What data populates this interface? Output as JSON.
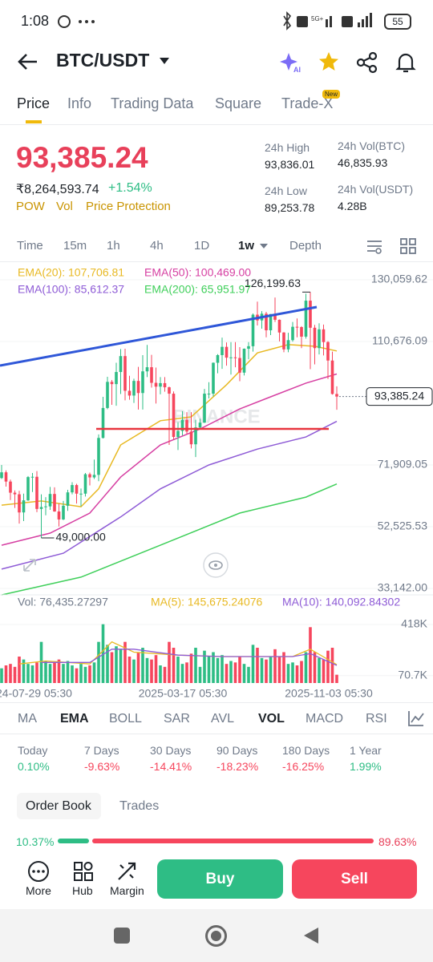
{
  "status_bar": {
    "time": "1:08",
    "battery": "55"
  },
  "header": {
    "title": "BTC/USDT"
  },
  "tabs": [
    "Price",
    "Info",
    "Trading Data",
    "Square",
    "Trade-X"
  ],
  "tab_badge": "New",
  "price": {
    "last": "93,385.24",
    "fiat": "₹8,264,593.74",
    "change": "+1.54%",
    "tags": [
      "POW",
      "Vol",
      "Price Protection"
    ]
  },
  "stats": [
    {
      "label": "24h High",
      "value": "93,836.01"
    },
    {
      "label": "24h Vol(BTC)",
      "value": "46,835.93"
    },
    {
      "label": "24h Low",
      "value": "89,253.78"
    },
    {
      "label": "24h Vol(USDT)",
      "value": "4.28B"
    }
  ],
  "intervals": [
    "Time",
    "15m",
    "1h",
    "4h",
    "1D",
    "1w",
    "Depth"
  ],
  "chart_data": {
    "type": "candlestick",
    "up_color": "#2ebd85",
    "down_color": "#f6465d",
    "ylim": [
      30370,
      134842
    ],
    "yticks": [
      {
        "value": 130059.62,
        "label": "130,059.62"
      },
      {
        "value": 110676.09,
        "label": "110,676.09"
      },
      {
        "value": 71909.05,
        "label": "71,909.05"
      },
      {
        "value": 52525.53,
        "label": "52,525.53"
      },
      {
        "value": 33142.0,
        "label": "33,142.00"
      }
    ],
    "grid": true,
    "candles": [
      [
        67800,
        71900,
        67500,
        69600
      ],
      [
        69600,
        70200,
        65100,
        66700
      ],
      [
        66700,
        67300,
        60900,
        63200
      ],
      [
        63200,
        63900,
        58400,
        62700
      ],
      [
        62700,
        63800,
        53500,
        57000
      ],
      [
        57000,
        62900,
        54300,
        60800
      ],
      [
        60800,
        68400,
        60600,
        68100
      ],
      [
        68100,
        69400,
        63400,
        68200
      ],
      [
        68200,
        70000,
        57100,
        58100
      ],
      [
        58100,
        62700,
        49000,
        58700
      ],
      [
        58700,
        61800,
        56100,
        58900
      ],
      [
        58900,
        65000,
        57800,
        62800
      ],
      [
        62800,
        64900,
        57200,
        57300
      ],
      [
        57300,
        59800,
        52600,
        54800
      ],
      [
        54800,
        60600,
        54600,
        59100
      ],
      [
        59100,
        64100,
        57500,
        63300
      ],
      [
        63300,
        66500,
        62700,
        65600
      ],
      [
        65600,
        66000,
        59800,
        62900
      ],
      [
        62900,
        64500,
        58900,
        62900
      ],
      [
        62900,
        69400,
        62000,
        69000
      ],
      [
        69000,
        69500,
        65500,
        68000
      ],
      [
        68000,
        73600,
        67500,
        68800
      ],
      [
        68800,
        81500,
        66800,
        80400
      ],
      [
        80400,
        93300,
        80200,
        89800
      ],
      [
        89800,
        99600,
        89400,
        98000
      ],
      [
        98000,
        98600,
        90800,
        97300
      ],
      [
        97300,
        104000,
        90500,
        101100
      ],
      [
        101100,
        108300,
        94200,
        106100
      ],
      [
        106100,
        108400,
        92200,
        95200
      ],
      [
        95200,
        99900,
        92400,
        93700
      ],
      [
        93700,
        99000,
        91400,
        98300
      ],
      [
        98300,
        102700,
        89300,
        94500
      ],
      [
        94500,
        106400,
        89300,
        101300
      ],
      [
        101300,
        109600,
        99500,
        102600
      ],
      [
        102600,
        106500,
        96200,
        97700
      ],
      [
        97700,
        102500,
        91200,
        96500
      ],
      [
        96500,
        99500,
        94100,
        97600
      ],
      [
        97600,
        99500,
        94900,
        96300
      ],
      [
        96300,
        96500,
        78200,
        94300
      ],
      [
        94300,
        95000,
        80000,
        80700
      ],
      [
        80700,
        85300,
        76600,
        82600
      ],
      [
        82600,
        88800,
        81200,
        86100
      ],
      [
        86100,
        88500,
        81600,
        82400
      ],
      [
        82400,
        88500,
        77100,
        78400
      ],
      [
        78400,
        86100,
        74400,
        83700
      ],
      [
        83700,
        86400,
        83100,
        85200
      ],
      [
        85200,
        95800,
        85100,
        94300
      ],
      [
        94300,
        97900,
        92800,
        94300
      ],
      [
        94300,
        104100,
        93400,
        104000
      ],
      [
        104000,
        106700,
        100700,
        106400
      ],
      [
        106400,
        111900,
        102100,
        109000
      ],
      [
        109000,
        110400,
        103100,
        105600
      ],
      [
        105600,
        110500,
        100300,
        105700
      ],
      [
        105700,
        110500,
        102600,
        105500
      ],
      [
        105500,
        108900,
        98200,
        100900
      ],
      [
        100900,
        108500,
        100000,
        108400
      ],
      [
        108400,
        110500,
        105100,
        109200
      ],
      [
        109200,
        119500,
        107500,
        119100
      ],
      [
        119100,
        123200,
        115700,
        117300
      ],
      [
        117300,
        120200,
        114700,
        119400
      ],
      [
        119400,
        120000,
        112000,
        114200
      ],
      [
        114200,
        119300,
        112700,
        119300
      ],
      [
        119300,
        124500,
        116800,
        117500
      ],
      [
        117500,
        117600,
        110700,
        113500
      ],
      [
        113500,
        113600,
        107300,
        108200
      ],
      [
        108200,
        113400,
        107300,
        111100
      ],
      [
        111100,
        116800,
        110600,
        115300
      ],
      [
        115300,
        117900,
        112000,
        115200
      ],
      [
        115200,
        115500,
        108600,
        112200
      ],
      [
        112200,
        125700,
        111600,
        123500
      ],
      [
        123500,
        126199.63,
        102000,
        115000
      ],
      [
        115000,
        115900,
        103500,
        108600
      ],
      [
        108600,
        116400,
        106600,
        114500
      ],
      [
        114500,
        116000,
        106300,
        110500
      ],
      [
        110500,
        110800,
        98900,
        104700
      ],
      [
        104700,
        107500,
        94000,
        94200
      ],
      [
        94200,
        96600,
        89253.78,
        93385.24
      ]
    ],
    "ema": [
      {
        "legend": "EMA(20): 107,706.81",
        "color": "#e8b923",
        "x": [
          0,
          9,
          18,
          22,
          27,
          36,
          43,
          51,
          58,
          65,
          71,
          76
        ],
        "values": [
          59300,
          60600,
          58800,
          64400,
          78200,
          85800,
          87000,
          97100,
          107100,
          109700,
          109200,
          107706.81
        ]
      },
      {
        "legend": "EMA(50): 100,469.00",
        "color": "#d63fa2",
        "x": [
          0,
          11,
          20,
          27,
          36,
          45,
          54,
          61,
          69,
          76
        ],
        "values": [
          46700,
          50500,
          56800,
          68100,
          78200,
          83200,
          89500,
          93300,
          97600,
          100469.0
        ]
      },
      {
        "legend": "EMA(100): 85,612.37",
        "color": "#8e5bd6",
        "x": [
          0,
          14,
          27,
          36,
          47,
          58,
          69,
          76
        ],
        "values": [
          39200,
          44200,
          55600,
          64400,
          71900,
          76900,
          80700,
          85612.37
        ]
      },
      {
        "legend": "EMA(200): 65,951.97",
        "color": "#3fcf5a",
        "x": [
          0,
          18,
          36,
          54,
          69,
          76
        ],
        "values": [
          31100,
          36700,
          46700,
          56800,
          61800,
          65951.97
        ]
      }
    ],
    "annotations": [
      {
        "value": 126199.63,
        "label": "126,199.63"
      },
      {
        "value": 49000,
        "label": "49,000.00"
      }
    ],
    "last_price": {
      "value": 93385.24,
      "label": "93,385.24"
    },
    "watermark": "BINANCE",
    "time_labels": [
      "24-07-29 05:30",
      "2025-03-17 05:30",
      "2025-11-03 05:30"
    ],
    "volume": {
      "legend": "Vol: 76,435.27297",
      "ylim": [
        20000,
        500000
      ],
      "yticks": [
        {
          "value": 418000,
          "label": "418K"
        },
        {
          "value": 70700,
          "label": "70.7K"
        }
      ],
      "values": [
        120000,
        140000,
        150000,
        130000,
        200000,
        180000,
        150000,
        140000,
        160000,
        300000,
        170000,
        150000,
        160000,
        180000,
        150000,
        170000,
        140000,
        120000,
        150000,
        130000,
        140000,
        160000,
        300000,
        420000,
        280000,
        230000,
        270000,
        250000,
        300000,
        200000,
        180000,
        230000,
        260000,
        190000,
        180000,
        210000,
        140000,
        130000,
        300000,
        260000,
        200000,
        150000,
        160000,
        220000,
        260000,
        130000,
        240000,
        200000,
        230000,
        190000,
        210000,
        150000,
        170000,
        160000,
        200000,
        150000,
        130000,
        280000,
        260000,
        190000,
        180000,
        200000,
        250000,
        200000,
        230000,
        150000,
        160000,
        140000,
        170000,
        230000,
        400000,
        230000,
        190000,
        180000,
        240000,
        260000,
        76435.27297
      ],
      "ma": [
        {
          "legend": "MA(5): 145,675.24076",
          "color": "#e8b923",
          "x": [
            4,
            10,
            20,
            25,
            30,
            40,
            50,
            60,
            66,
            70,
            76
          ],
          "values": [
            150000,
            170000,
            150000,
            300000,
            230000,
            210000,
            200000,
            200000,
            200000,
            250000,
            145675.24076
          ]
        },
        {
          "legend": "MA(10): 140,092.84302",
          "color": "#8e5bd6",
          "x": [
            9,
            20,
            25,
            30,
            40,
            50,
            60,
            66,
            70,
            76
          ],
          "values": [
            160000,
            160000,
            250000,
            250000,
            210000,
            200000,
            200000,
            200000,
            220000,
            140092.84302
          ]
        }
      ]
    }
  },
  "indicators": [
    "MA",
    "EMA",
    "BOLL",
    "SAR",
    "AVL",
    "VOL",
    "MACD",
    "RSI"
  ],
  "performance": [
    {
      "period": "Today",
      "change": "0.10%",
      "color": "#2ebd85"
    },
    {
      "period": "7 Days",
      "change": "-9.63%",
      "color": "#f6465d"
    },
    {
      "period": "30 Days",
      "change": "-14.41%",
      "color": "#f6465d"
    },
    {
      "period": "90 Days",
      "change": "-18.23%",
      "color": "#f6465d"
    },
    {
      "period": "180 Days",
      "change": "-16.25%",
      "color": "#f6465d"
    },
    {
      "period": "1 Year",
      "change": "1.99%",
      "color": "#2ebd85"
    }
  ],
  "order_tabs": [
    "Order Book",
    "Trades"
  ],
  "ratio": {
    "buy": {
      "value": 10.37,
      "label": "10.37%"
    },
    "sell": {
      "value": 89.63,
      "label": "89.63%"
    }
  },
  "nav": [
    "More",
    "Hub",
    "Margin"
  ],
  "actions": [
    "Buy",
    "Sell"
  ]
}
